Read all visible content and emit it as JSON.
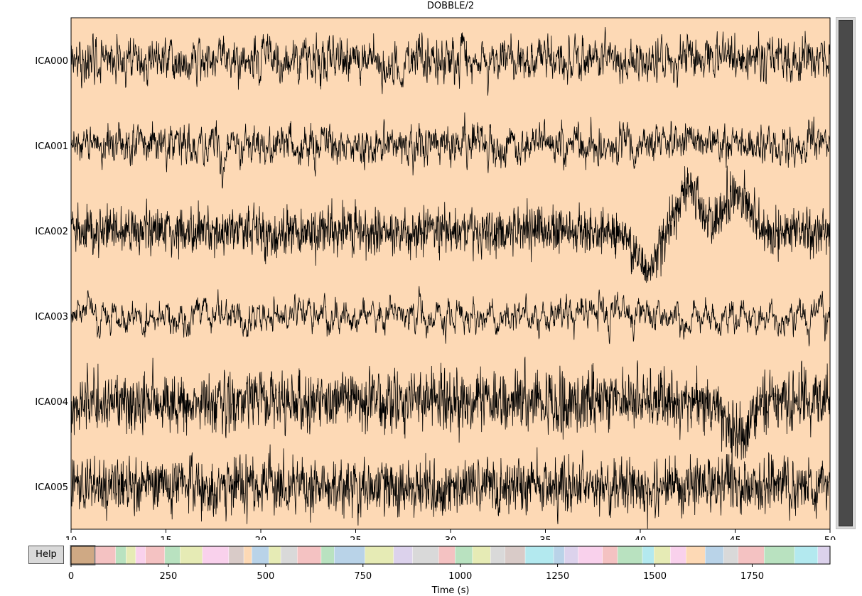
{
  "title": "DOBBLE/2",
  "help_label": "Help",
  "colors": {
    "background": "#fdd9b5",
    "title": "#f58518",
    "trace": "#000000",
    "overview_fill": "#fdd9b5",
    "overview_palette": [
      "#f4c2c2",
      "#d9cbc8",
      "#fdd9b5",
      "#b9e2c0",
      "#b3e9ef",
      "#b9d3e8",
      "#e6ebb5",
      "#dcd2ec",
      "#d9d9d9",
      "#f9d1ec"
    ]
  },
  "chart_data": {
    "type": "line",
    "xlabel": "",
    "ylabel": "",
    "xlim": [
      10,
      50
    ],
    "x_ticks": [
      "10",
      "15",
      "20",
      "25",
      "30",
      "35",
      "40",
      "45",
      "50"
    ],
    "grid": false,
    "channels": [
      "ICA000",
      "ICA001",
      "ICA002",
      "ICA003",
      "ICA004",
      "ICA005"
    ],
    "events": [
      {
        "channel": "ICA001",
        "time": 18,
        "shape": "spike"
      },
      {
        "channel": "ICA002",
        "time": 40.4,
        "shape": "dip"
      },
      {
        "channel": "ICA002",
        "time": 42.5,
        "shape": "peak"
      },
      {
        "channel": "ICA002",
        "time": 45.1,
        "shape": "peak"
      },
      {
        "channel": "ICA004",
        "time": 45.1,
        "shape": "dip"
      }
    ]
  },
  "overview": {
    "xlim": [
      0,
      1950
    ],
    "x_ticks": [
      "0",
      "250",
      "500",
      "750",
      "1000",
      "1250",
      "1500",
      "1750"
    ],
    "xlabel": "Time (s)",
    "view_window": [
      10,
      50
    ]
  }
}
